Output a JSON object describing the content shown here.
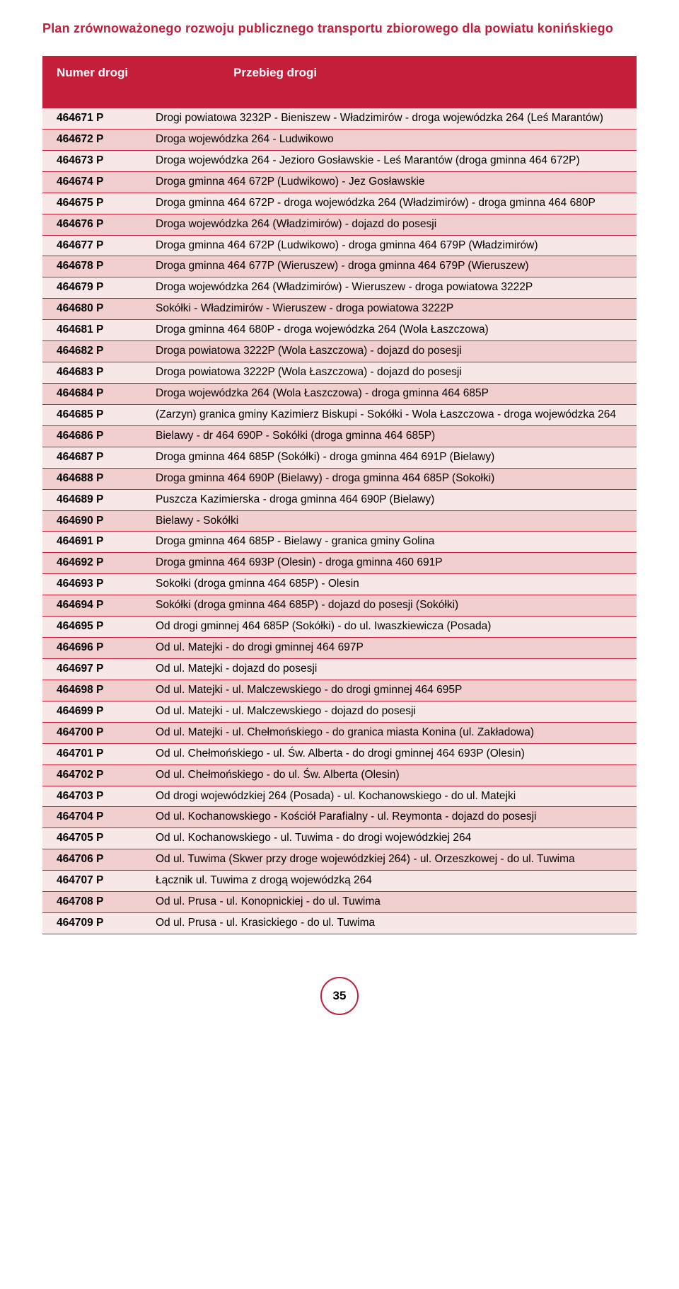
{
  "doc_title": "Plan zrównoważonego rozwoju publicznego transportu zbiorowego dla powiatu konińskiego",
  "table": {
    "header_num": "Numer drogi",
    "header_desc": "Przebieg drogi",
    "rows": [
      {
        "num": "464671 P",
        "desc": "Drogi powiatowa  3232P - Bieniszew - Władzimirów - droga wojewódzka 264 (Leś Marantów)"
      },
      {
        "num": "464672 P",
        "desc": "Droga wojewódzka 264 - Ludwikowo"
      },
      {
        "num": "464673 P",
        "desc": "Droga wojewódzka 264 - Jezioro Gosławskie - Leś Marantów (droga gminna 464 672P)"
      },
      {
        "num": "464674 P",
        "desc": "Droga gminna 464 672P (Ludwikowo) - Jez Gosławskie"
      },
      {
        "num": "464675 P",
        "desc": "Droga gminna 464 672P - droga wojewódzka 264 (Władzimirów) - droga gminna 464 680P"
      },
      {
        "num": "464676 P",
        "desc": "Droga wojewódzka 264 (Władzimirów) - dojazd do posesji"
      },
      {
        "num": "464677 P",
        "desc": "Droga gminna 464 672P (Ludwikowo) - droga gminna 464 679P (Władzimirów)"
      },
      {
        "num": "464678 P",
        "desc": "Droga gminna 464 677P (Wieruszew) - droga gminna 464 679P (Wieruszew)"
      },
      {
        "num": "464679 P",
        "desc": "Droga wojewódzka 264 (Władzimirów) - Wieruszew - droga powiatowa  3222P"
      },
      {
        "num": "464680 P",
        "desc": "Sokółki - Władzimirów - Wieruszew - droga powiatowa  3222P"
      },
      {
        "num": "464681 P",
        "desc": "Droga gminna 464 680P - droga wojewódzka 264 (Wola Łaszczowa)"
      },
      {
        "num": "464682 P",
        "desc": "Droga powiatowa 3222P (Wola Łaszczowa) - dojazd do posesji"
      },
      {
        "num": "464683 P",
        "desc": "Droga powiatowa  3222P (Wola Łaszczowa) - dojazd do posesji"
      },
      {
        "num": "464684 P",
        "desc": "Droga wojewódzka 264 (Wola Łaszczowa) - droga gminna 464 685P"
      },
      {
        "num": "464685 P",
        "desc": "(Zarzyn) granica gminy Kazimierz Biskupi - Sokółki - Wola Łaszczowa - droga wojewódzka 264"
      },
      {
        "num": "464686 P",
        "desc": "Bielawy - dr 464 690P - Sokółki (droga gminna 464 685P)"
      },
      {
        "num": "464687 P",
        "desc": "Droga gminna 464 685P (Sokółki) - droga gminna 464 691P (Bielawy)"
      },
      {
        "num": "464688 P",
        "desc": "Droga gminna 464 690P (Bielawy) - droga gminna 464 685P (Sokołki)"
      },
      {
        "num": "464689 P",
        "desc": "Puszcza Kazimierska - droga gminna 464 690P (Bielawy)"
      },
      {
        "num": "464690 P",
        "desc": "Bielawy - Sokółki"
      },
      {
        "num": "464691 P",
        "desc": "Droga gminna 464 685P - Bielawy - granica gminy Golina"
      },
      {
        "num": "464692 P",
        "desc": "Droga gminna 464 693P (Olesin) - droga gminna 460 691P"
      },
      {
        "num": "464693 P",
        "desc": "Sokołki (droga gminna 464 685P) - Olesin"
      },
      {
        "num": "464694 P",
        "desc": "Sokółki (droga gminna 464 685P) - dojazd do posesji (Sokółki)"
      },
      {
        "num": "464695 P",
        "desc": "Od drogi gminnej 464 685P (Sokółki) - do ul. Iwaszkiewicza (Posada)"
      },
      {
        "num": "464696 P",
        "desc": "Od ul. Matejki - do drogi gminnej 464 697P"
      },
      {
        "num": "464697 P",
        "desc": "Od ul. Matejki - dojazd do posesji"
      },
      {
        "num": "464698 P",
        "desc": "Od ul. Matejki - ul. Malczewskiego - do drogi gminnej 464 695P"
      },
      {
        "num": "464699 P",
        "desc": "Od ul. Matejki - ul. Malczewskiego - dojazd do posesji"
      },
      {
        "num": "464700 P",
        "desc": "Od ul. Matejki - ul. Chełmońskiego - do granica miasta Konina (ul. Zakładowa)"
      },
      {
        "num": "464701 P",
        "desc": "Od ul. Chełmońskiego - ul. Św. Alberta - do drogi gminnej 464 693P (Olesin)"
      },
      {
        "num": "464702 P",
        "desc": "Od ul. Chełmońskiego - do ul. Św. Alberta (Olesin)"
      },
      {
        "num": "464703 P",
        "desc": "Od drogi wojewódzkiej 264 (Posada) - ul. Kochanowskiego - do ul. Matejki"
      },
      {
        "num": "464704 P",
        "desc": "Od ul. Kochanowskiego - Kościół Parafialny - ul. Reymonta - dojazd do posesji"
      },
      {
        "num": "464705 P",
        "desc": "Od ul. Kochanowskiego - ul. Tuwima - do drogi wojewódzkiej 264"
      },
      {
        "num": "464706 P",
        "desc": "Od ul. Tuwima (Skwer przy droge wojewódzkiej 264) - ul. Orzeszkowej - do ul. Tuwima"
      },
      {
        "num": "464707 P",
        "desc": "Łącznik ul. Tuwima z drogą wojewódzką 264"
      },
      {
        "num": "464708 P",
        "desc": "Od ul. Prusa - ul. Konopnickiej - do ul. Tuwima"
      },
      {
        "num": "464709 P",
        "desc": "Od ul. Prusa - ul. Krasickiego - do ul. Tuwima"
      }
    ]
  },
  "page_number": "35",
  "colors": {
    "brand": "#c41e3a",
    "row_light": "#f8e7e7",
    "row_dark": "#f2cfcf"
  }
}
